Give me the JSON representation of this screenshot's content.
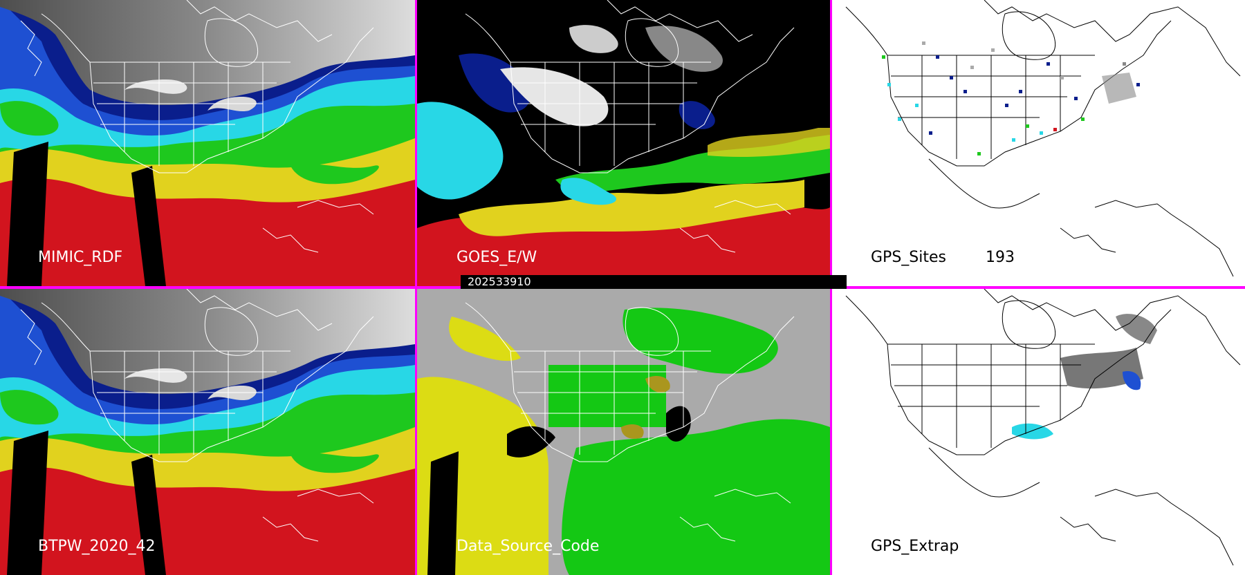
{
  "panels": {
    "top_left": {
      "label": "MIMIC_RDF"
    },
    "top_middle": {
      "label": "GOES_E/W"
    },
    "top_right": {
      "label": "GPS_Sites",
      "count": "193"
    },
    "bottom_left": {
      "label": "BTPW_2020_42"
    },
    "bottom_middle": {
      "label": "Data_Source_Code"
    },
    "bottom_right": {
      "label": "GPS_Extrap"
    }
  },
  "timestamp": "202533910",
  "colors": {
    "divider": "#ff00ff",
    "tpw_gray_low": "#5a5a5a",
    "tpw_gray_high": "#d8d8d8",
    "tpw_navy": "#0a1e8c",
    "tpw_blue": "#1e50d2",
    "tpw_cyan": "#28d7e6",
    "tpw_green": "#1ec81e",
    "tpw_yellow": "#e1d21e",
    "tpw_red": "#d2141e",
    "source_gray": "#aaaaaa",
    "source_yellow": "#dcdc14",
    "source_green": "#14c814",
    "source_olive": "#aa961e"
  }
}
